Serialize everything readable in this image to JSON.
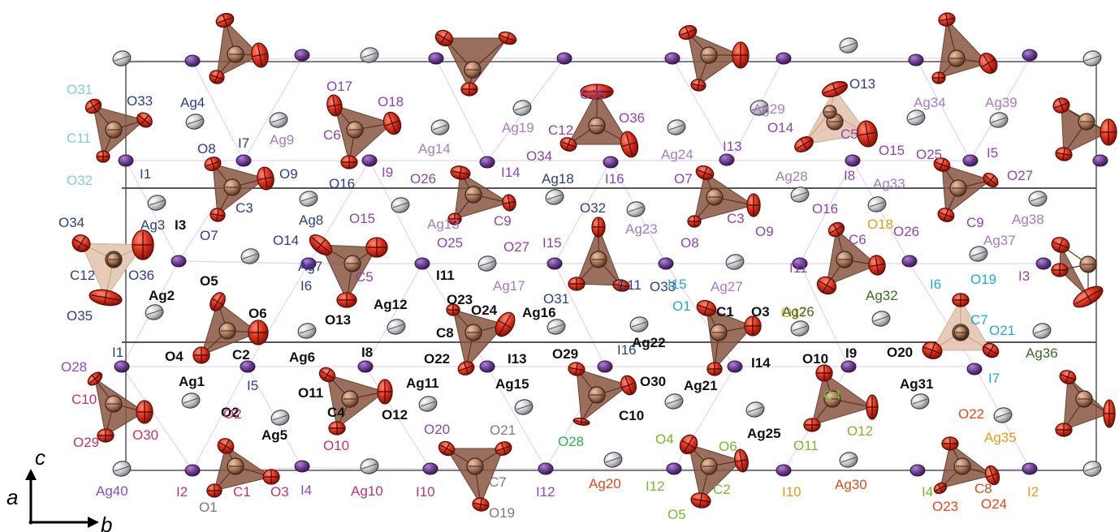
{
  "axes": {
    "c": "c",
    "a": "a",
    "b": "b"
  },
  "palette": {
    "oxygen": "#e0311c",
    "oxygen_edge": "#5a0d06",
    "carbon": "#a8755a",
    "carbon_face": "#8a5642",
    "silver": "#c3c7cb",
    "silver_edge": "#3a3a3a",
    "iodine": "#6b3a8f",
    "iodine_edge": "#2f1745",
    "cell_line": "#555555",
    "bond_line": "#e7d2e7"
  },
  "label_colors": {
    "purple": "#8e44ad",
    "navy": "#2c3e8a",
    "black": "#111111",
    "cyan": "#22a7d6",
    "lightcyan": "#7ecfd4",
    "magenta": "#c2336c",
    "gray": "#7a7a7a",
    "green": "#2bb24c",
    "lime": "#7ab82a",
    "orange": "#e69a12",
    "redorange": "#e04b1c",
    "darkgreen": "#3d6b1f",
    "lightpurple": "#a57bc7",
    "violet": "#8c4ac1"
  },
  "labels": [
    {
      "t": "O31",
      "c": "lightcyan"
    },
    {
      "t": "O33",
      "c": "navy"
    },
    {
      "t": "C11",
      "c": "lightcyan"
    },
    {
      "t": "O32",
      "c": "lightcyan"
    },
    {
      "t": "I1",
      "c": "navy"
    },
    {
      "t": "Ag4",
      "c": "navy"
    },
    {
      "t": "O8",
      "c": "navy"
    },
    {
      "t": "I7",
      "c": "navy"
    },
    {
      "t": "Ag9",
      "c": "lightpurple"
    },
    {
      "t": "O9",
      "c": "navy"
    },
    {
      "t": "O17",
      "c": "purple"
    },
    {
      "t": "O18",
      "c": "purple"
    },
    {
      "t": "C6",
      "c": "purple"
    },
    {
      "t": "O16",
      "c": "navy"
    },
    {
      "t": "I9",
      "c": "purple"
    },
    {
      "t": "Ag19",
      "c": "lightpurple"
    },
    {
      "t": "Ag14",
      "c": "lightpurple"
    },
    {
      "t": "O26",
      "c": "purple"
    },
    {
      "t": "I14",
      "c": "purple"
    },
    {
      "t": "O35",
      "c": "purple"
    },
    {
      "t": "C12",
      "c": "purple"
    },
    {
      "t": "O36",
      "c": "purple"
    },
    {
      "t": "O34",
      "c": "purple"
    },
    {
      "t": "Ag18",
      "c": "navy"
    },
    {
      "t": "I16",
      "c": "purple"
    },
    {
      "t": "Ag24",
      "c": "lightpurple"
    },
    {
      "t": "I13",
      "c": "purple"
    },
    {
      "t": "O7",
      "c": "purple"
    },
    {
      "t": "Ag29",
      "c": "lightpurple"
    },
    {
      "t": "O13",
      "c": "navy"
    },
    {
      "t": "C5",
      "c": "purple"
    },
    {
      "t": "O14",
      "c": "purple"
    },
    {
      "t": "O15",
      "c": "purple"
    },
    {
      "t": "I8",
      "c": "purple"
    },
    {
      "t": "Ag28",
      "c": "lightpurple"
    },
    {
      "t": "Ag34",
      "c": "lightpurple"
    },
    {
      "t": "Ag39",
      "c": "lightpurple"
    },
    {
      "t": "O25",
      "c": "purple"
    },
    {
      "t": "I5",
      "c": "purple"
    },
    {
      "t": "O27",
      "c": "purple"
    },
    {
      "t": "Ag33",
      "c": "lightpurple"
    },
    {
      "t": "O34",
      "c": "navy"
    },
    {
      "t": "Ag3",
      "c": "navy"
    },
    {
      "t": "C3",
      "c": "navy"
    },
    {
      "t": "O7",
      "c": "navy"
    },
    {
      "t": "Ag8",
      "c": "navy"
    },
    {
      "t": "O15",
      "c": "purple"
    },
    {
      "t": "Ag13",
      "c": "lightpurple"
    },
    {
      "t": "O25",
      "c": "purple"
    },
    {
      "t": "C9",
      "c": "purple"
    },
    {
      "t": "O27",
      "c": "purple"
    },
    {
      "t": "O32",
      "c": "navy"
    },
    {
      "t": "Ag23",
      "c": "lightpurple"
    },
    {
      "t": "C3",
      "c": "purple"
    },
    {
      "t": "O8",
      "c": "purple"
    },
    {
      "t": "O9",
      "c": "purple"
    },
    {
      "t": "O16",
      "c": "purple"
    },
    {
      "t": "C6",
      "c": "purple"
    },
    {
      "t": "O18",
      "c": "orange"
    },
    {
      "t": "O26",
      "c": "purple"
    },
    {
      "t": "C9",
      "c": "purple"
    },
    {
      "t": "Ag38",
      "c": "lightpurple"
    },
    {
      "t": "Ag37",
      "c": "lightpurple"
    },
    {
      "t": "I3",
      "c": "black"
    },
    {
      "t": "C12",
      "c": "navy"
    },
    {
      "t": "O36",
      "c": "navy"
    },
    {
      "t": "O14",
      "c": "navy"
    },
    {
      "t": "Ag7",
      "c": "navy"
    },
    {
      "t": "I6",
      "c": "navy"
    },
    {
      "t": "C5",
      "c": "purple"
    },
    {
      "t": "I11",
      "c": "black"
    },
    {
      "t": "I15",
      "c": "purple"
    },
    {
      "t": "Ag17",
      "c": "lightpurple"
    },
    {
      "t": "C11",
      "c": "navy"
    },
    {
      "t": "O33",
      "c": "navy"
    },
    {
      "t": "O31",
      "c": "navy"
    },
    {
      "t": "I15",
      "c": "cyan"
    },
    {
      "t": "Ag27",
      "c": "lightpurple"
    },
    {
      "t": "I11",
      "c": "purple"
    },
    {
      "t": "I6",
      "c": "cyan"
    },
    {
      "t": "O19",
      "c": "cyan"
    },
    {
      "t": "I3",
      "c": "purple"
    },
    {
      "t": "O5",
      "c": "black"
    },
    {
      "t": "Ag2",
      "c": "black"
    },
    {
      "t": "O6",
      "c": "black"
    },
    {
      "t": "O13",
      "c": "black"
    },
    {
      "t": "Ag12",
      "c": "black"
    },
    {
      "t": "O23",
      "c": "black"
    },
    {
      "t": "O24",
      "c": "black"
    },
    {
      "t": "Ag16",
      "c": "black"
    },
    {
      "t": "O35",
      "c": "navy"
    },
    {
      "t": "O1",
      "c": "cyan"
    },
    {
      "t": "C1",
      "c": "black"
    },
    {
      "t": "O3",
      "c": "black"
    },
    {
      "t": "O17",
      "c": "orange"
    },
    {
      "t": "Ag26",
      "c": "darkgreen"
    },
    {
      "t": "Ag32",
      "c": "darkgreen"
    },
    {
      "t": "C7",
      "c": "cyan"
    },
    {
      "t": "O21",
      "c": "cyan"
    },
    {
      "t": "C8",
      "c": "black"
    },
    {
      "t": "Ag22",
      "c": "black"
    },
    {
      "t": "I1",
      "c": "navy"
    },
    {
      "t": "O4",
      "c": "black"
    },
    {
      "t": "C2",
      "c": "black"
    },
    {
      "t": "Ag6",
      "c": "black"
    },
    {
      "t": "I8",
      "c": "black"
    },
    {
      "t": "O22",
      "c": "black"
    },
    {
      "t": "I13",
      "c": "black"
    },
    {
      "t": "O29",
      "c": "black"
    },
    {
      "t": "I16",
      "c": "navy"
    },
    {
      "t": "O10",
      "c": "black"
    },
    {
      "t": "I9",
      "c": "black"
    },
    {
      "t": "O20",
      "c": "black"
    },
    {
      "t": "Ag36",
      "c": "darkgreen"
    },
    {
      "t": "O28",
      "c": "violet"
    },
    {
      "t": "I5",
      "c": "navy"
    },
    {
      "t": "O2",
      "c": "black"
    },
    {
      "t": "I14",
      "c": "black"
    },
    {
      "t": "I7",
      "c": "cyan"
    },
    {
      "t": "Ag1",
      "c": "black"
    },
    {
      "t": "Ag11",
      "c": "black"
    },
    {
      "t": "O30",
      "c": "black"
    },
    {
      "t": "C10",
      "c": "magenta"
    },
    {
      "t": "O11",
      "c": "black"
    },
    {
      "t": "Ag15",
      "c": "black"
    },
    {
      "t": "Ag21",
      "c": "black"
    },
    {
      "t": "Ag31",
      "c": "black"
    },
    {
      "t": "O29",
      "c": "magenta"
    },
    {
      "t": "O30",
      "c": "magenta"
    },
    {
      "t": "O2",
      "c": "magenta"
    },
    {
      "t": "C4",
      "c": "black"
    },
    {
      "t": "O12",
      "c": "black"
    },
    {
      "t": "C10",
      "c": "black"
    },
    {
      "t": "C4",
      "c": "lime"
    },
    {
      "t": "Ag5",
      "c": "black"
    },
    {
      "t": "O10",
      "c": "magenta"
    },
    {
      "t": "O20",
      "c": "purple"
    },
    {
      "t": "O21",
      "c": "gray"
    },
    {
      "t": "O28",
      "c": "green"
    },
    {
      "t": "O4",
      "c": "lime"
    },
    {
      "t": "O6",
      "c": "lime"
    },
    {
      "t": "Ag25",
      "c": "black"
    },
    {
      "t": "O11",
      "c": "lime"
    },
    {
      "t": "O12",
      "c": "lime"
    },
    {
      "t": "O22",
      "c": "redorange"
    },
    {
      "t": "Ag35",
      "c": "orange"
    },
    {
      "t": "Ag40",
      "c": "violet"
    },
    {
      "t": "I2",
      "c": "magenta"
    },
    {
      "t": "C1",
      "c": "magenta"
    },
    {
      "t": "O3",
      "c": "magenta"
    },
    {
      "t": "I4",
      "c": "violet"
    },
    {
      "t": "Ag10",
      "c": "magenta"
    },
    {
      "t": "I10",
      "c": "magenta"
    },
    {
      "t": "C7",
      "c": "gray"
    },
    {
      "t": "I12",
      "c": "violet"
    },
    {
      "t": "Ag20",
      "c": "redorange"
    },
    {
      "t": "I12",
      "c": "lime"
    },
    {
      "t": "C2",
      "c": "lime"
    },
    {
      "t": "I10",
      "c": "orange"
    },
    {
      "t": "Ag30",
      "c": "redorange"
    },
    {
      "t": "I4",
      "c": "lime"
    },
    {
      "t": "C8",
      "c": "redorange"
    },
    {
      "t": "I2",
      "c": "orange"
    },
    {
      "t": "O1",
      "c": "gray"
    },
    {
      "t": "O19",
      "c": "gray"
    },
    {
      "t": "O5",
      "c": "lime"
    },
    {
      "t": "O23",
      "c": "redorange"
    },
    {
      "t": "O24",
      "c": "redorange"
    }
  ]
}
